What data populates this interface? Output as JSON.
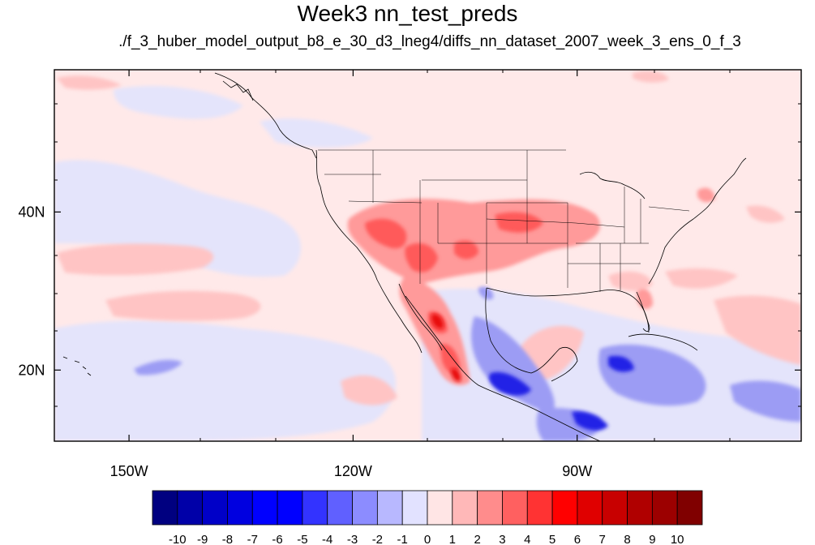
{
  "figure": {
    "title": "Week3 nn_test_preds",
    "subtitle": "./f_3_huber_model_output_b8_e_30_d3_lneg4/diffs_nn_dataset_2007_week_3_ens_0_f_3"
  },
  "map": {
    "projection": "cylindrical equidistant",
    "lon_range": [
      -160,
      -60
    ],
    "lat_range": [
      11,
      58
    ],
    "lat_tick_labels": [
      {
        "lat": 40,
        "label": "40N"
      },
      {
        "lat": 20,
        "label": "20N"
      }
    ],
    "lon_tick_labels": [
      {
        "lon": -150,
        "label": "150W"
      },
      {
        "lon": -120,
        "label": "120W"
      },
      {
        "lon": -90,
        "label": "90W"
      }
    ],
    "background_level": "0 to 1 (very light pink)",
    "features": [
      {
        "region": "Southwest US / Arizona / New Mexico",
        "level": "3-5"
      },
      {
        "region": "Central Plains (Kansas / Oklahoma)",
        "level": "2-4"
      },
      {
        "region": "Sierra Madre Occidental, western Mexico",
        "level": "4-6"
      },
      {
        "region": "Southern Mexico / Central America coast",
        "level": "-7 to -4"
      },
      {
        "region": "Caribbean / Cuba area",
        "level": "-3 to -2"
      },
      {
        "region": "Northeast Pacific bands",
        "level": "1-2"
      }
    ]
  },
  "colorbar": {
    "labels": [
      "-10",
      "-9",
      "-8",
      "-7",
      "-6",
      "-5",
      "-4",
      "-3",
      "-2",
      "-1",
      "0",
      "1",
      "2",
      "3",
      "4",
      "5",
      "6",
      "7",
      "8",
      "9",
      "10"
    ],
    "colors": [
      "#000080",
      "#0000a8",
      "#0000c8",
      "#0000e0",
      "#0000ff",
      "#0000ff",
      "#3333ff",
      "#6060ff",
      "#8c8cff",
      "#b8b8ff",
      "#e2e2ff",
      "#ffe5e5",
      "#ffb8b8",
      "#ff8c8c",
      "#ff6060",
      "#ff3333",
      "#ff0000",
      "#e00000",
      "#c80000",
      "#b00000",
      "#9c0000",
      "#800000"
    ]
  }
}
